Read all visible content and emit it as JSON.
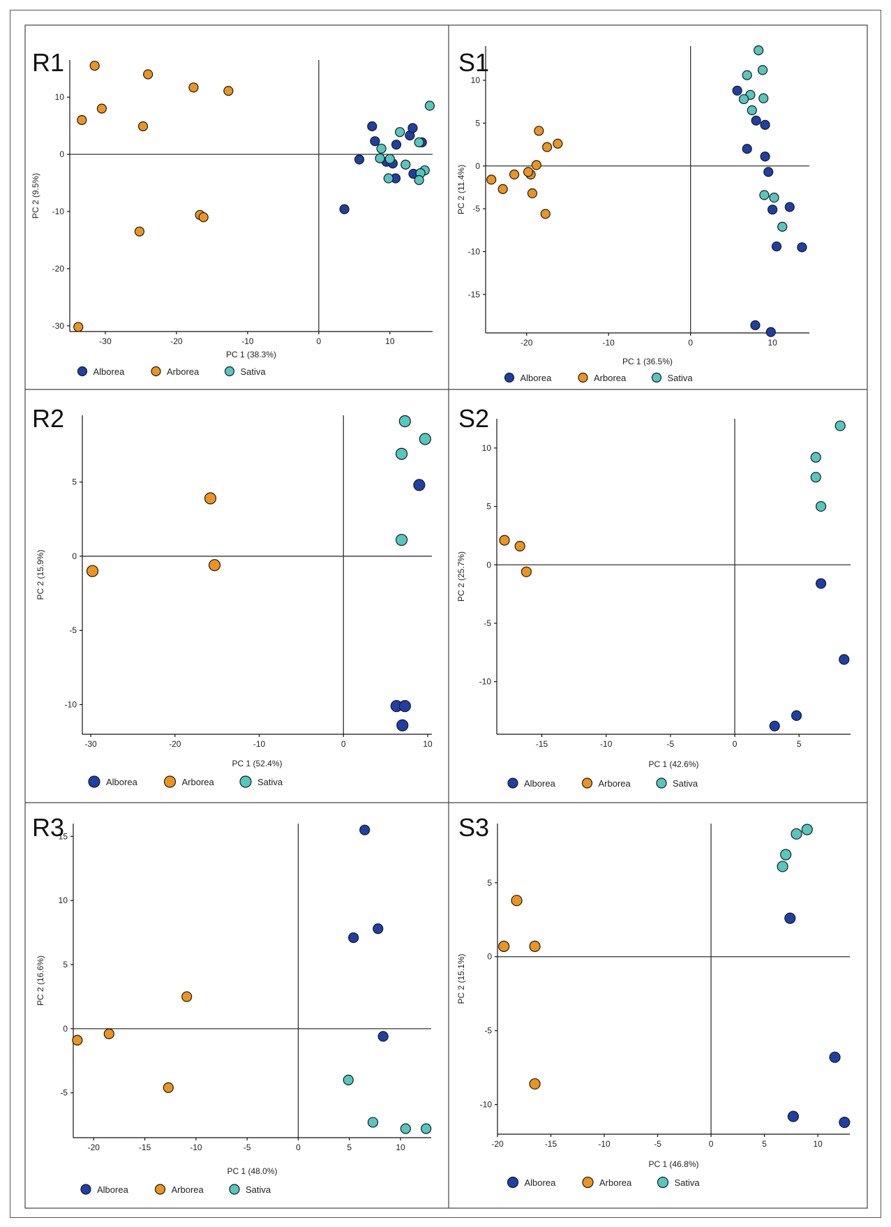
{
  "colors": {
    "Alborea": "#1f3fa6",
    "Arborea": "#eb9420",
    "Sativa": "#55c7bf"
  },
  "legend": [
    "Alborea",
    "Arborea",
    "Sativa"
  ],
  "chart_data": [
    {
      "id": "R1",
      "type": "scatter",
      "xlabel": "PC 1 (38.3%)",
      "ylabel": "PC 2 (9.5%)",
      "xlim": [
        -35,
        16
      ],
      "ylim": [
        -31,
        16.5
      ],
      "xticks": [
        -30,
        -20,
        -10,
        0,
        10
      ],
      "yticks": [
        -30,
        -20,
        -10,
        0,
        10
      ],
      "series": [
        {
          "name": "Arborea",
          "points": [
            [
              -31.5,
              15.5
            ],
            [
              -24,
              14
            ],
            [
              -30.5,
              8
            ],
            [
              -33.3,
              6
            ],
            [
              -24.7,
              4.9
            ],
            [
              -17.6,
              11.7
            ],
            [
              -12.7,
              11.1
            ],
            [
              -16.7,
              -10.6
            ],
            [
              -16.2,
              -11
            ],
            [
              -25.2,
              -13.5
            ],
            [
              -33.8,
              -30.2
            ]
          ]
        },
        {
          "name": "Alborea",
          "points": [
            [
              7.5,
              4.9
            ],
            [
              7.9,
              2.3
            ],
            [
              5.7,
              -0.9
            ],
            [
              9.5,
              -1.3
            ],
            [
              10.4,
              -1.6
            ],
            [
              10.9,
              1.7
            ],
            [
              12.8,
              3.3
            ],
            [
              13.2,
              4.6
            ],
            [
              14.5,
              2.1
            ],
            [
              13.3,
              -3.4
            ],
            [
              10.8,
              -4.2
            ],
            [
              3.6,
              -9.6
            ]
          ]
        },
        {
          "name": "Sativa",
          "points": [
            [
              11.4,
              3.9
            ],
            [
              15.6,
              8.5
            ],
            [
              8.8,
              1
            ],
            [
              8.6,
              -0.7
            ],
            [
              10,
              -0.8
            ],
            [
              9.8,
              -4.2
            ],
            [
              12.2,
              -1.8
            ],
            [
              14.1,
              2.1
            ],
            [
              14.9,
              -2.8
            ],
            [
              14.3,
              -3.3
            ],
            [
              14.1,
              -4.5
            ]
          ]
        }
      ]
    },
    {
      "id": "S1",
      "type": "scatter",
      "xlabel": "PC 1 (36.5%)",
      "ylabel": "PC 2 (11.4%)",
      "xlim": [
        -25,
        14.5
      ],
      "ylim": [
        -19.5,
        14
      ],
      "xticks": [
        -20,
        -10,
        0,
        10
      ],
      "yticks": [
        -15,
        -10,
        -5,
        0,
        5,
        10
      ],
      "series": [
        {
          "name": "Arborea",
          "points": [
            [
              -18.5,
              4.1
            ],
            [
              -16.2,
              2.6
            ],
            [
              -17.5,
              2.2
            ],
            [
              -18.8,
              0.1
            ],
            [
              -21.5,
              -1
            ],
            [
              -19.5,
              -1
            ],
            [
              -19.8,
              -0.7
            ],
            [
              -24.3,
              -1.6
            ],
            [
              -22.9,
              -2.7
            ],
            [
              -19.3,
              -3.2
            ],
            [
              -17.7,
              -5.6
            ]
          ]
        },
        {
          "name": "Alborea",
          "points": [
            [
              5.7,
              8.8
            ],
            [
              8,
              5.3
            ],
            [
              9.1,
              4.8
            ],
            [
              6.9,
              2
            ],
            [
              9.1,
              1.1
            ],
            [
              9.5,
              -0.7
            ],
            [
              10,
              -5.1
            ],
            [
              12.1,
              -4.8
            ],
            [
              10.5,
              -9.4
            ],
            [
              13.6,
              -9.5
            ],
            [
              7.9,
              -18.6
            ],
            [
              9.8,
              -19.4
            ]
          ]
        },
        {
          "name": "Sativa",
          "points": [
            [
              8.3,
              13.5
            ],
            [
              8.8,
              11.2
            ],
            [
              6.9,
              10.6
            ],
            [
              7.3,
              8.3
            ],
            [
              6.5,
              7.8
            ],
            [
              8.9,
              7.9
            ],
            [
              7.5,
              6.5
            ],
            [
              9,
              -3.4
            ],
            [
              10.2,
              -3.7
            ],
            [
              11.2,
              -7.1
            ]
          ]
        }
      ]
    },
    {
      "id": "R2",
      "type": "scatter",
      "xlabel": "PC 1 (52.4%)",
      "ylabel": "PC 2 (15.9%)",
      "xlim": [
        -31,
        10.5
      ],
      "ylim": [
        -12,
        9.5
      ],
      "xticks": [
        -30,
        -20,
        -10,
        0,
        10
      ],
      "yticks": [
        -10,
        -5,
        0,
        5
      ],
      "series": [
        {
          "name": "Arborea",
          "points": [
            [
              -15.8,
              3.9
            ],
            [
              -15.3,
              -0.6
            ],
            [
              -29.8,
              -1
            ]
          ]
        },
        {
          "name": "Alborea",
          "points": [
            [
              9,
              4.8
            ],
            [
              6.3,
              -10.1
            ],
            [
              7.3,
              -10.1
            ],
            [
              7,
              -11.4
            ]
          ]
        },
        {
          "name": "Sativa",
          "points": [
            [
              7.3,
              9.1
            ],
            [
              9.7,
              7.9
            ],
            [
              6.9,
              6.9
            ],
            [
              6.9,
              1.1
            ]
          ]
        }
      ]
    },
    {
      "id": "S2",
      "type": "scatter",
      "xlabel": "PC 1 (42.6%)",
      "ylabel": "PC 2 (25.7%)",
      "xlim": [
        -18.5,
        9
      ],
      "ylim": [
        -14.5,
        12.5
      ],
      "xticks": [
        -15,
        -10,
        -5,
        0,
        5
      ],
      "yticks": [
        -10,
        -5,
        0,
        5,
        10
      ],
      "series": [
        {
          "name": "Arborea",
          "points": [
            [
              -17.9,
              2.1
            ],
            [
              -16.7,
              1.6
            ],
            [
              -16.2,
              -0.6
            ]
          ]
        },
        {
          "name": "Alborea",
          "points": [
            [
              6.7,
              -1.6
            ],
            [
              8.5,
              -8.1
            ],
            [
              4.8,
              -12.9
            ],
            [
              3.1,
              -13.8
            ]
          ]
        },
        {
          "name": "Sativa",
          "points": [
            [
              8.2,
              11.9
            ],
            [
              6.3,
              9.2
            ],
            [
              6.3,
              7.5
            ],
            [
              6.7,
              5
            ]
          ]
        }
      ]
    },
    {
      "id": "R3",
      "type": "scatter",
      "xlabel": "PC 1 (48.0%)",
      "ylabel": "PC 2 (16.6%)",
      "xlim": [
        -22,
        13
      ],
      "ylim": [
        -8.5,
        16
      ],
      "xticks": [
        -20,
        -15,
        -10,
        -5,
        0,
        5,
        10
      ],
      "yticks": [
        -5,
        0,
        5,
        10,
        15
      ],
      "series": [
        {
          "name": "Arborea",
          "points": [
            [
              -10.9,
              2.5
            ],
            [
              -18.5,
              -0.4
            ],
            [
              -21.6,
              -0.9
            ],
            [
              -12.7,
              -4.6
            ]
          ]
        },
        {
          "name": "Alborea",
          "points": [
            [
              6.5,
              15.5
            ],
            [
              7.8,
              7.8
            ],
            [
              5.4,
              7.1
            ],
            [
              8.3,
              -0.6
            ]
          ]
        },
        {
          "name": "Sativa",
          "points": [
            [
              4.9,
              -4
            ],
            [
              7.3,
              -7.3
            ],
            [
              10.5,
              -7.8
            ],
            [
              12.5,
              -7.8
            ]
          ]
        }
      ]
    },
    {
      "id": "S3",
      "type": "scatter",
      "xlabel": "PC 1 (46.8%)",
      "ylabel": "PC 2 (15.1%)",
      "xlim": [
        -20,
        13
      ],
      "ylim": [
        -12,
        9
      ],
      "xticks": [
        -20,
        -15,
        -10,
        -5,
        0,
        5,
        10
      ],
      "yticks": [
        -10,
        -5,
        0,
        5
      ],
      "series": [
        {
          "name": "Arborea",
          "points": [
            [
              -18.2,
              3.8
            ],
            [
              -19.4,
              0.7
            ],
            [
              -16.5,
              0.7
            ],
            [
              -16.5,
              -8.6
            ]
          ]
        },
        {
          "name": "Alborea",
          "points": [
            [
              7.4,
              2.6
            ],
            [
              11.6,
              -6.8
            ],
            [
              7.7,
              -10.8
            ],
            [
              12.5,
              -11.2
            ]
          ]
        },
        {
          "name": "Sativa",
          "points": [
            [
              9,
              8.6
            ],
            [
              8,
              8.3
            ],
            [
              7,
              6.9
            ],
            [
              6.7,
              6.1
            ]
          ]
        }
      ]
    }
  ]
}
